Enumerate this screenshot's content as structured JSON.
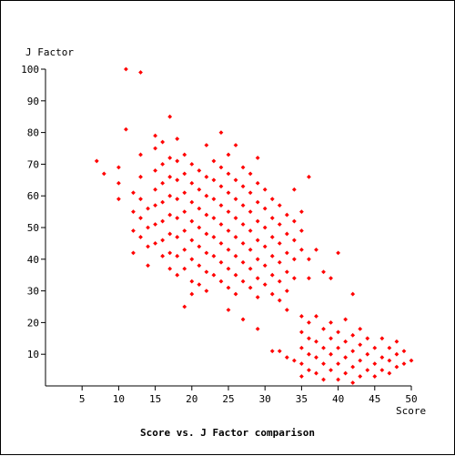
{
  "chart_data": {
    "type": "scatter",
    "title": "Score vs. J Factor comparison",
    "xlabel": "Score",
    "ylabel": "J Factor",
    "xlim": [
      0,
      50
    ],
    "ylim": [
      0,
      100
    ],
    "x_ticks": [
      5,
      10,
      15,
      20,
      25,
      30,
      35,
      40,
      45,
      50
    ],
    "y_ticks": [
      10,
      20,
      30,
      40,
      50,
      60,
      70,
      80,
      90,
      100
    ],
    "grid": false,
    "legend": "none",
    "marker": "diamond",
    "colors": {
      "marker": "#ff0000",
      "axis": "#000000",
      "background": "#ffffff"
    },
    "series": [
      {
        "points": [
          [
            11,
            100
          ],
          [
            13,
            99
          ],
          [
            17,
            85
          ],
          [
            11,
            81
          ],
          [
            15,
            79
          ],
          [
            24,
            80
          ],
          [
            7,
            71
          ],
          [
            8,
            67
          ],
          [
            10,
            69
          ],
          [
            10,
            64
          ],
          [
            10,
            59
          ],
          [
            12,
            61
          ],
          [
            12,
            55
          ],
          [
            12,
            49
          ],
          [
            12,
            42
          ],
          [
            13,
            73
          ],
          [
            13,
            66
          ],
          [
            13,
            59
          ],
          [
            13,
            53
          ],
          [
            13,
            47
          ],
          [
            14,
            56
          ],
          [
            14,
            50
          ],
          [
            14,
            44
          ],
          [
            14,
            38
          ],
          [
            15,
            75
          ],
          [
            15,
            68
          ],
          [
            15,
            62
          ],
          [
            15,
            57
          ],
          [
            15,
            51
          ],
          [
            15,
            45
          ],
          [
            16,
            77
          ],
          [
            16,
            70
          ],
          [
            16,
            64
          ],
          [
            16,
            58
          ],
          [
            16,
            52
          ],
          [
            16,
            46
          ],
          [
            16,
            41
          ],
          [
            17,
            72
          ],
          [
            17,
            66
          ],
          [
            17,
            60
          ],
          [
            17,
            54
          ],
          [
            17,
            48
          ],
          [
            17,
            42
          ],
          [
            17,
            37
          ],
          [
            18,
            78
          ],
          [
            18,
            71
          ],
          [
            18,
            65
          ],
          [
            18,
            59
          ],
          [
            18,
            53
          ],
          [
            18,
            47
          ],
          [
            18,
            41
          ],
          [
            18,
            35
          ],
          [
            19,
            73
          ],
          [
            19,
            67
          ],
          [
            19,
            61
          ],
          [
            19,
            55
          ],
          [
            19,
            49
          ],
          [
            19,
            43
          ],
          [
            19,
            37
          ],
          [
            19,
            25
          ],
          [
            20,
            70
          ],
          [
            20,
            64
          ],
          [
            20,
            58
          ],
          [
            20,
            52
          ],
          [
            20,
            46
          ],
          [
            20,
            40
          ],
          [
            20,
            33
          ],
          [
            20,
            29
          ],
          [
            21,
            68
          ],
          [
            21,
            62
          ],
          [
            21,
            56
          ],
          [
            21,
            50
          ],
          [
            21,
            44
          ],
          [
            21,
            38
          ],
          [
            21,
            32
          ],
          [
            22,
            76
          ],
          [
            22,
            66
          ],
          [
            22,
            60
          ],
          [
            22,
            54
          ],
          [
            22,
            48
          ],
          [
            22,
            42
          ],
          [
            22,
            36
          ],
          [
            22,
            30
          ],
          [
            23,
            71
          ],
          [
            23,
            65
          ],
          [
            23,
            59
          ],
          [
            23,
            53
          ],
          [
            23,
            47
          ],
          [
            23,
            41
          ],
          [
            23,
            35
          ],
          [
            24,
            69
          ],
          [
            24,
            63
          ],
          [
            24,
            57
          ],
          [
            24,
            51
          ],
          [
            24,
            45
          ],
          [
            24,
            39
          ],
          [
            24,
            33
          ],
          [
            25,
            73
          ],
          [
            25,
            67
          ],
          [
            25,
            61
          ],
          [
            25,
            55
          ],
          [
            25,
            49
          ],
          [
            25,
            43
          ],
          [
            25,
            37
          ],
          [
            25,
            31
          ],
          [
            25,
            24
          ],
          [
            26,
            76
          ],
          [
            26,
            65
          ],
          [
            26,
            59
          ],
          [
            26,
            53
          ],
          [
            26,
            47
          ],
          [
            26,
            41
          ],
          [
            26,
            35
          ],
          [
            26,
            29
          ],
          [
            27,
            69
          ],
          [
            27,
            63
          ],
          [
            27,
            57
          ],
          [
            27,
            51
          ],
          [
            27,
            45
          ],
          [
            27,
            39
          ],
          [
            27,
            33
          ],
          [
            27,
            21
          ],
          [
            28,
            67
          ],
          [
            28,
            61
          ],
          [
            28,
            55
          ],
          [
            28,
            49
          ],
          [
            28,
            43
          ],
          [
            28,
            37
          ],
          [
            28,
            31
          ],
          [
            29,
            72
          ],
          [
            29,
            64
          ],
          [
            29,
            58
          ],
          [
            29,
            52
          ],
          [
            29,
            46
          ],
          [
            29,
            40
          ],
          [
            29,
            34
          ],
          [
            29,
            28
          ],
          [
            29,
            18
          ],
          [
            30,
            62
          ],
          [
            30,
            56
          ],
          [
            30,
            50
          ],
          [
            30,
            44
          ],
          [
            30,
            38
          ],
          [
            30,
            32
          ],
          [
            31,
            59
          ],
          [
            31,
            53
          ],
          [
            31,
            47
          ],
          [
            31,
            41
          ],
          [
            31,
            35
          ],
          [
            31,
            29
          ],
          [
            31,
            11
          ],
          [
            32,
            57
          ],
          [
            32,
            51
          ],
          [
            32,
            45
          ],
          [
            32,
            39
          ],
          [
            32,
            33
          ],
          [
            32,
            27
          ],
          [
            32,
            11
          ],
          [
            33,
            54
          ],
          [
            33,
            48
          ],
          [
            33,
            42
          ],
          [
            33,
            36
          ],
          [
            33,
            30
          ],
          [
            33,
            24
          ],
          [
            33,
            9
          ],
          [
            34,
            62
          ],
          [
            34,
            52
          ],
          [
            34,
            46
          ],
          [
            34,
            40
          ],
          [
            34,
            34
          ],
          [
            34,
            8
          ],
          [
            35,
            55
          ],
          [
            35,
            49
          ],
          [
            35,
            43
          ],
          [
            35,
            22
          ],
          [
            35,
            17
          ],
          [
            35,
            12
          ],
          [
            35,
            7
          ],
          [
            35,
            3
          ],
          [
            36,
            66
          ],
          [
            36,
            40
          ],
          [
            36,
            34
          ],
          [
            36,
            20
          ],
          [
            36,
            15
          ],
          [
            36,
            10
          ],
          [
            36,
            5
          ],
          [
            37,
            43
          ],
          [
            37,
            22
          ],
          [
            37,
            14
          ],
          [
            37,
            9
          ],
          [
            37,
            4
          ],
          [
            38,
            36
          ],
          [
            38,
            18
          ],
          [
            38,
            12
          ],
          [
            38,
            7
          ],
          [
            38,
            2
          ],
          [
            39,
            34
          ],
          [
            39,
            20
          ],
          [
            39,
            15
          ],
          [
            39,
            10
          ],
          [
            39,
            5
          ],
          [
            40,
            42
          ],
          [
            40,
            17
          ],
          [
            40,
            12
          ],
          [
            40,
            7
          ],
          [
            40,
            2
          ],
          [
            41,
            21
          ],
          [
            41,
            14
          ],
          [
            41,
            9
          ],
          [
            41,
            4
          ],
          [
            42,
            29
          ],
          [
            42,
            16
          ],
          [
            42,
            11
          ],
          [
            42,
            6
          ],
          [
            42,
            1
          ],
          [
            43,
            18
          ],
          [
            43,
            13
          ],
          [
            43,
            8
          ],
          [
            43,
            3
          ],
          [
            44,
            15
          ],
          [
            44,
            10
          ],
          [
            44,
            5
          ],
          [
            45,
            12
          ],
          [
            45,
            7
          ],
          [
            45,
            3
          ],
          [
            46,
            15
          ],
          [
            46,
            9
          ],
          [
            46,
            5
          ],
          [
            47,
            12
          ],
          [
            47,
            8
          ],
          [
            47,
            4
          ],
          [
            48,
            14
          ],
          [
            48,
            10
          ],
          [
            48,
            6
          ],
          [
            49,
            11
          ],
          [
            49,
            7
          ],
          [
            50,
            8
          ]
        ]
      }
    ]
  }
}
